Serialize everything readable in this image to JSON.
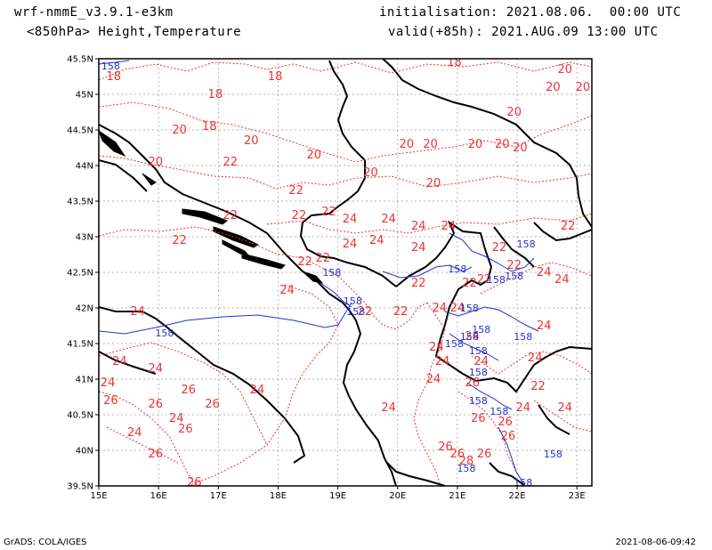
{
  "header": {
    "model": "wrf-nmmE_v3.9.1-e3km",
    "level": "<850hPa> Height,Temperature",
    "init": "initialisation: 2021.08.06.  00:00 UTC",
    "valid": "valid(+85h): 2021.AUG.09 13:00 UTC"
  },
  "footer": {
    "left": "GrADS: COLA/IGES",
    "right": "2021-08-06-09:42"
  },
  "colors": {
    "temperature": "#ee3333",
    "height": "#2233cc",
    "coast": "#000000",
    "grid": "#999999"
  },
  "map": {
    "lat_ticks": [
      "45.5N",
      "45N",
      "44.5N",
      "44N",
      "43.5N",
      "43N",
      "42.5N",
      "42N",
      "41.5N",
      "41N",
      "40.5N",
      "40N",
      "39.5N"
    ],
    "lon_ticks": [
      "15E",
      "16E",
      "17E",
      "18E",
      "19E",
      "20E",
      "21E",
      "22E",
      "23E"
    ],
    "lon_range": [
      15,
      23.25
    ],
    "lat_range": [
      39.5,
      45.5
    ],
    "temperature_labels": [
      {
        "text": "18",
        "lon": 15.25,
        "lat": 45.25
      },
      {
        "text": "18",
        "lon": 16.95,
        "lat": 45.0
      },
      {
        "text": "18",
        "lon": 17.95,
        "lat": 45.25
      },
      {
        "text": "18",
        "lon": 16.85,
        "lat": 44.55
      },
      {
        "text": "18",
        "lon": 20.95,
        "lat": 45.45
      },
      {
        "text": "20",
        "lon": 16.35,
        "lat": 44.5
      },
      {
        "text": "20",
        "lon": 15.95,
        "lat": 44.05
      },
      {
        "text": "20",
        "lon": 17.55,
        "lat": 44.35
      },
      {
        "text": "20",
        "lon": 18.6,
        "lat": 44.15
      },
      {
        "text": "20",
        "lon": 19.55,
        "lat": 43.9
      },
      {
        "text": "20",
        "lon": 20.15,
        "lat": 44.3
      },
      {
        "text": "20",
        "lon": 20.55,
        "lat": 44.3
      },
      {
        "text": "20",
        "lon": 20.6,
        "lat": 43.75
      },
      {
        "text": "20",
        "lon": 21.3,
        "lat": 44.3
      },
      {
        "text": "20",
        "lon": 21.75,
        "lat": 44.3
      },
      {
        "text": "20",
        "lon": 22.05,
        "lat": 44.25
      },
      {
        "text": "20",
        "lon": 21.95,
        "lat": 44.75
      },
      {
        "text": "20",
        "lon": 22.6,
        "lat": 45.1
      },
      {
        "text": "20",
        "lon": 22.8,
        "lat": 45.35
      },
      {
        "text": "20",
        "lon": 23.1,
        "lat": 45.1
      },
      {
        "text": "22",
        "lon": 17.2,
        "lat": 44.05
      },
      {
        "text": "22",
        "lon": 17.2,
        "lat": 43.3
      },
      {
        "text": "22",
        "lon": 18.3,
        "lat": 43.65
      },
      {
        "text": "22",
        "lon": 16.35,
        "lat": 42.95
      },
      {
        "text": "22",
        "lon": 18.35,
        "lat": 43.3
      },
      {
        "text": "22",
        "lon": 18.85,
        "lat": 43.35
      },
      {
        "text": "22",
        "lon": 18.45,
        "lat": 42.65
      },
      {
        "text": "22",
        "lon": 18.75,
        "lat": 42.7
      },
      {
        "text": "22",
        "lon": 19.45,
        "lat": 41.95
      },
      {
        "text": "22",
        "lon": 20.05,
        "lat": 41.95
      },
      {
        "text": "22",
        "lon": 20.35,
        "lat": 42.35
      },
      {
        "text": "22",
        "lon": 21.2,
        "lat": 42.35
      },
      {
        "text": "22",
        "lon": 21.45,
        "lat": 42.4
      },
      {
        "text": "22",
        "lon": 21.7,
        "lat": 42.85
      },
      {
        "text": "22",
        "lon": 21.95,
        "lat": 42.6
      },
      {
        "text": "22",
        "lon": 22.85,
        "lat": 43.15
      },
      {
        "text": "22",
        "lon": 22.35,
        "lat": 40.9
      },
      {
        "text": "24",
        "lon": 19.2,
        "lat": 43.25
      },
      {
        "text": "24",
        "lon": 19.2,
        "lat": 42.9
      },
      {
        "text": "24",
        "lon": 19.65,
        "lat": 42.95
      },
      {
        "text": "24",
        "lon": 19.85,
        "lat": 43.25
      },
      {
        "text": "24",
        "lon": 20.35,
        "lat": 43.15
      },
      {
        "text": "24",
        "lon": 20.85,
        "lat": 43.15
      },
      {
        "text": "24",
        "lon": 20.35,
        "lat": 42.85
      },
      {
        "text": "24",
        "lon": 18.15,
        "lat": 42.25
      },
      {
        "text": "24",
        "lon": 15.65,
        "lat": 41.95
      },
      {
        "text": "24",
        "lon": 15.35,
        "lat": 41.25
      },
      {
        "text": "24",
        "lon": 15.95,
        "lat": 41.15
      },
      {
        "text": "24",
        "lon": 17.65,
        "lat": 40.85
      },
      {
        "text": "24",
        "lon": 15.15,
        "lat": 40.95
      },
      {
        "text": "24",
        "lon": 16.3,
        "lat": 40.45
      },
      {
        "text": "24",
        "lon": 15.6,
        "lat": 40.25
      },
      {
        "text": "24",
        "lon": 20.7,
        "lat": 42.0
      },
      {
        "text": "24",
        "lon": 21.0,
        "lat": 42.0
      },
      {
        "text": "24",
        "lon": 21.25,
        "lat": 41.6
      },
      {
        "text": "24",
        "lon": 20.65,
        "lat": 41.45
      },
      {
        "text": "24",
        "lon": 20.75,
        "lat": 41.25
      },
      {
        "text": "24",
        "lon": 21.4,
        "lat": 41.25
      },
      {
        "text": "24",
        "lon": 20.6,
        "lat": 41.0
      },
      {
        "text": "24",
        "lon": 22.45,
        "lat": 42.5
      },
      {
        "text": "24",
        "lon": 22.75,
        "lat": 42.4
      },
      {
        "text": "24",
        "lon": 22.45,
        "lat": 41.75
      },
      {
        "text": "24",
        "lon": 22.3,
        "lat": 41.3
      },
      {
        "text": "24",
        "lon": 22.8,
        "lat": 40.6
      },
      {
        "text": "24",
        "lon": 22.1,
        "lat": 40.6
      },
      {
        "text": "24",
        "lon": 19.85,
        "lat": 40.6
      },
      {
        "text": "26",
        "lon": 15.2,
        "lat": 40.7
      },
      {
        "text": "26",
        "lon": 16.5,
        "lat": 40.85
      },
      {
        "text": "26",
        "lon": 16.9,
        "lat": 40.65
      },
      {
        "text": "26",
        "lon": 15.95,
        "lat": 40.65
      },
      {
        "text": "26",
        "lon": 16.45,
        "lat": 40.3
      },
      {
        "text": "26",
        "lon": 15.95,
        "lat": 39.95
      },
      {
        "text": "26",
        "lon": 16.6,
        "lat": 39.55
      },
      {
        "text": "26",
        "lon": 21.25,
        "lat": 40.95
      },
      {
        "text": "26",
        "lon": 21.35,
        "lat": 40.45
      },
      {
        "text": "26",
        "lon": 21.8,
        "lat": 40.4
      },
      {
        "text": "26",
        "lon": 21.85,
        "lat": 40.2
      },
      {
        "text": "26",
        "lon": 20.8,
        "lat": 40.05
      },
      {
        "text": "26",
        "lon": 21.0,
        "lat": 39.95
      },
      {
        "text": "26",
        "lon": 21.45,
        "lat": 39.95
      },
      {
        "text": "28",
        "lon": 21.15,
        "lat": 39.85
      }
    ],
    "height_labels": [
      {
        "text": "158",
        "lon": 15.2,
        "lat": 45.4
      },
      {
        "text": "158",
        "lon": 18.9,
        "lat": 42.5
      },
      {
        "text": "158",
        "lon": 19.25,
        "lat": 42.1
      },
      {
        "text": "158",
        "lon": 19.3,
        "lat": 41.95
      },
      {
        "text": "158",
        "lon": 16.1,
        "lat": 41.65
      },
      {
        "text": "158",
        "lon": 21.0,
        "lat": 42.55
      },
      {
        "text": "158",
        "lon": 21.65,
        "lat": 42.4
      },
      {
        "text": "158",
        "lon": 22.15,
        "lat": 42.9
      },
      {
        "text": "158",
        "lon": 21.95,
        "lat": 42.45
      },
      {
        "text": "158",
        "lon": 21.2,
        "lat": 42.0
      },
      {
        "text": "158",
        "lon": 21.4,
        "lat": 41.7
      },
      {
        "text": "158",
        "lon": 21.2,
        "lat": 41.6
      },
      {
        "text": "158",
        "lon": 20.95,
        "lat": 41.5
      },
      {
        "text": "158",
        "lon": 21.35,
        "lat": 41.4
      },
      {
        "text": "158",
        "lon": 22.1,
        "lat": 41.6
      },
      {
        "text": "158",
        "lon": 21.35,
        "lat": 41.1
      },
      {
        "text": "158",
        "lon": 21.35,
        "lat": 40.7
      },
      {
        "text": "158",
        "lon": 21.7,
        "lat": 40.55
      },
      {
        "text": "158",
        "lon": 21.15,
        "lat": 39.75
      },
      {
        "text": "158",
        "lon": 22.6,
        "lat": 39.95
      },
      {
        "text": "158",
        "lon": 22.1,
        "lat": 39.55
      }
    ]
  }
}
